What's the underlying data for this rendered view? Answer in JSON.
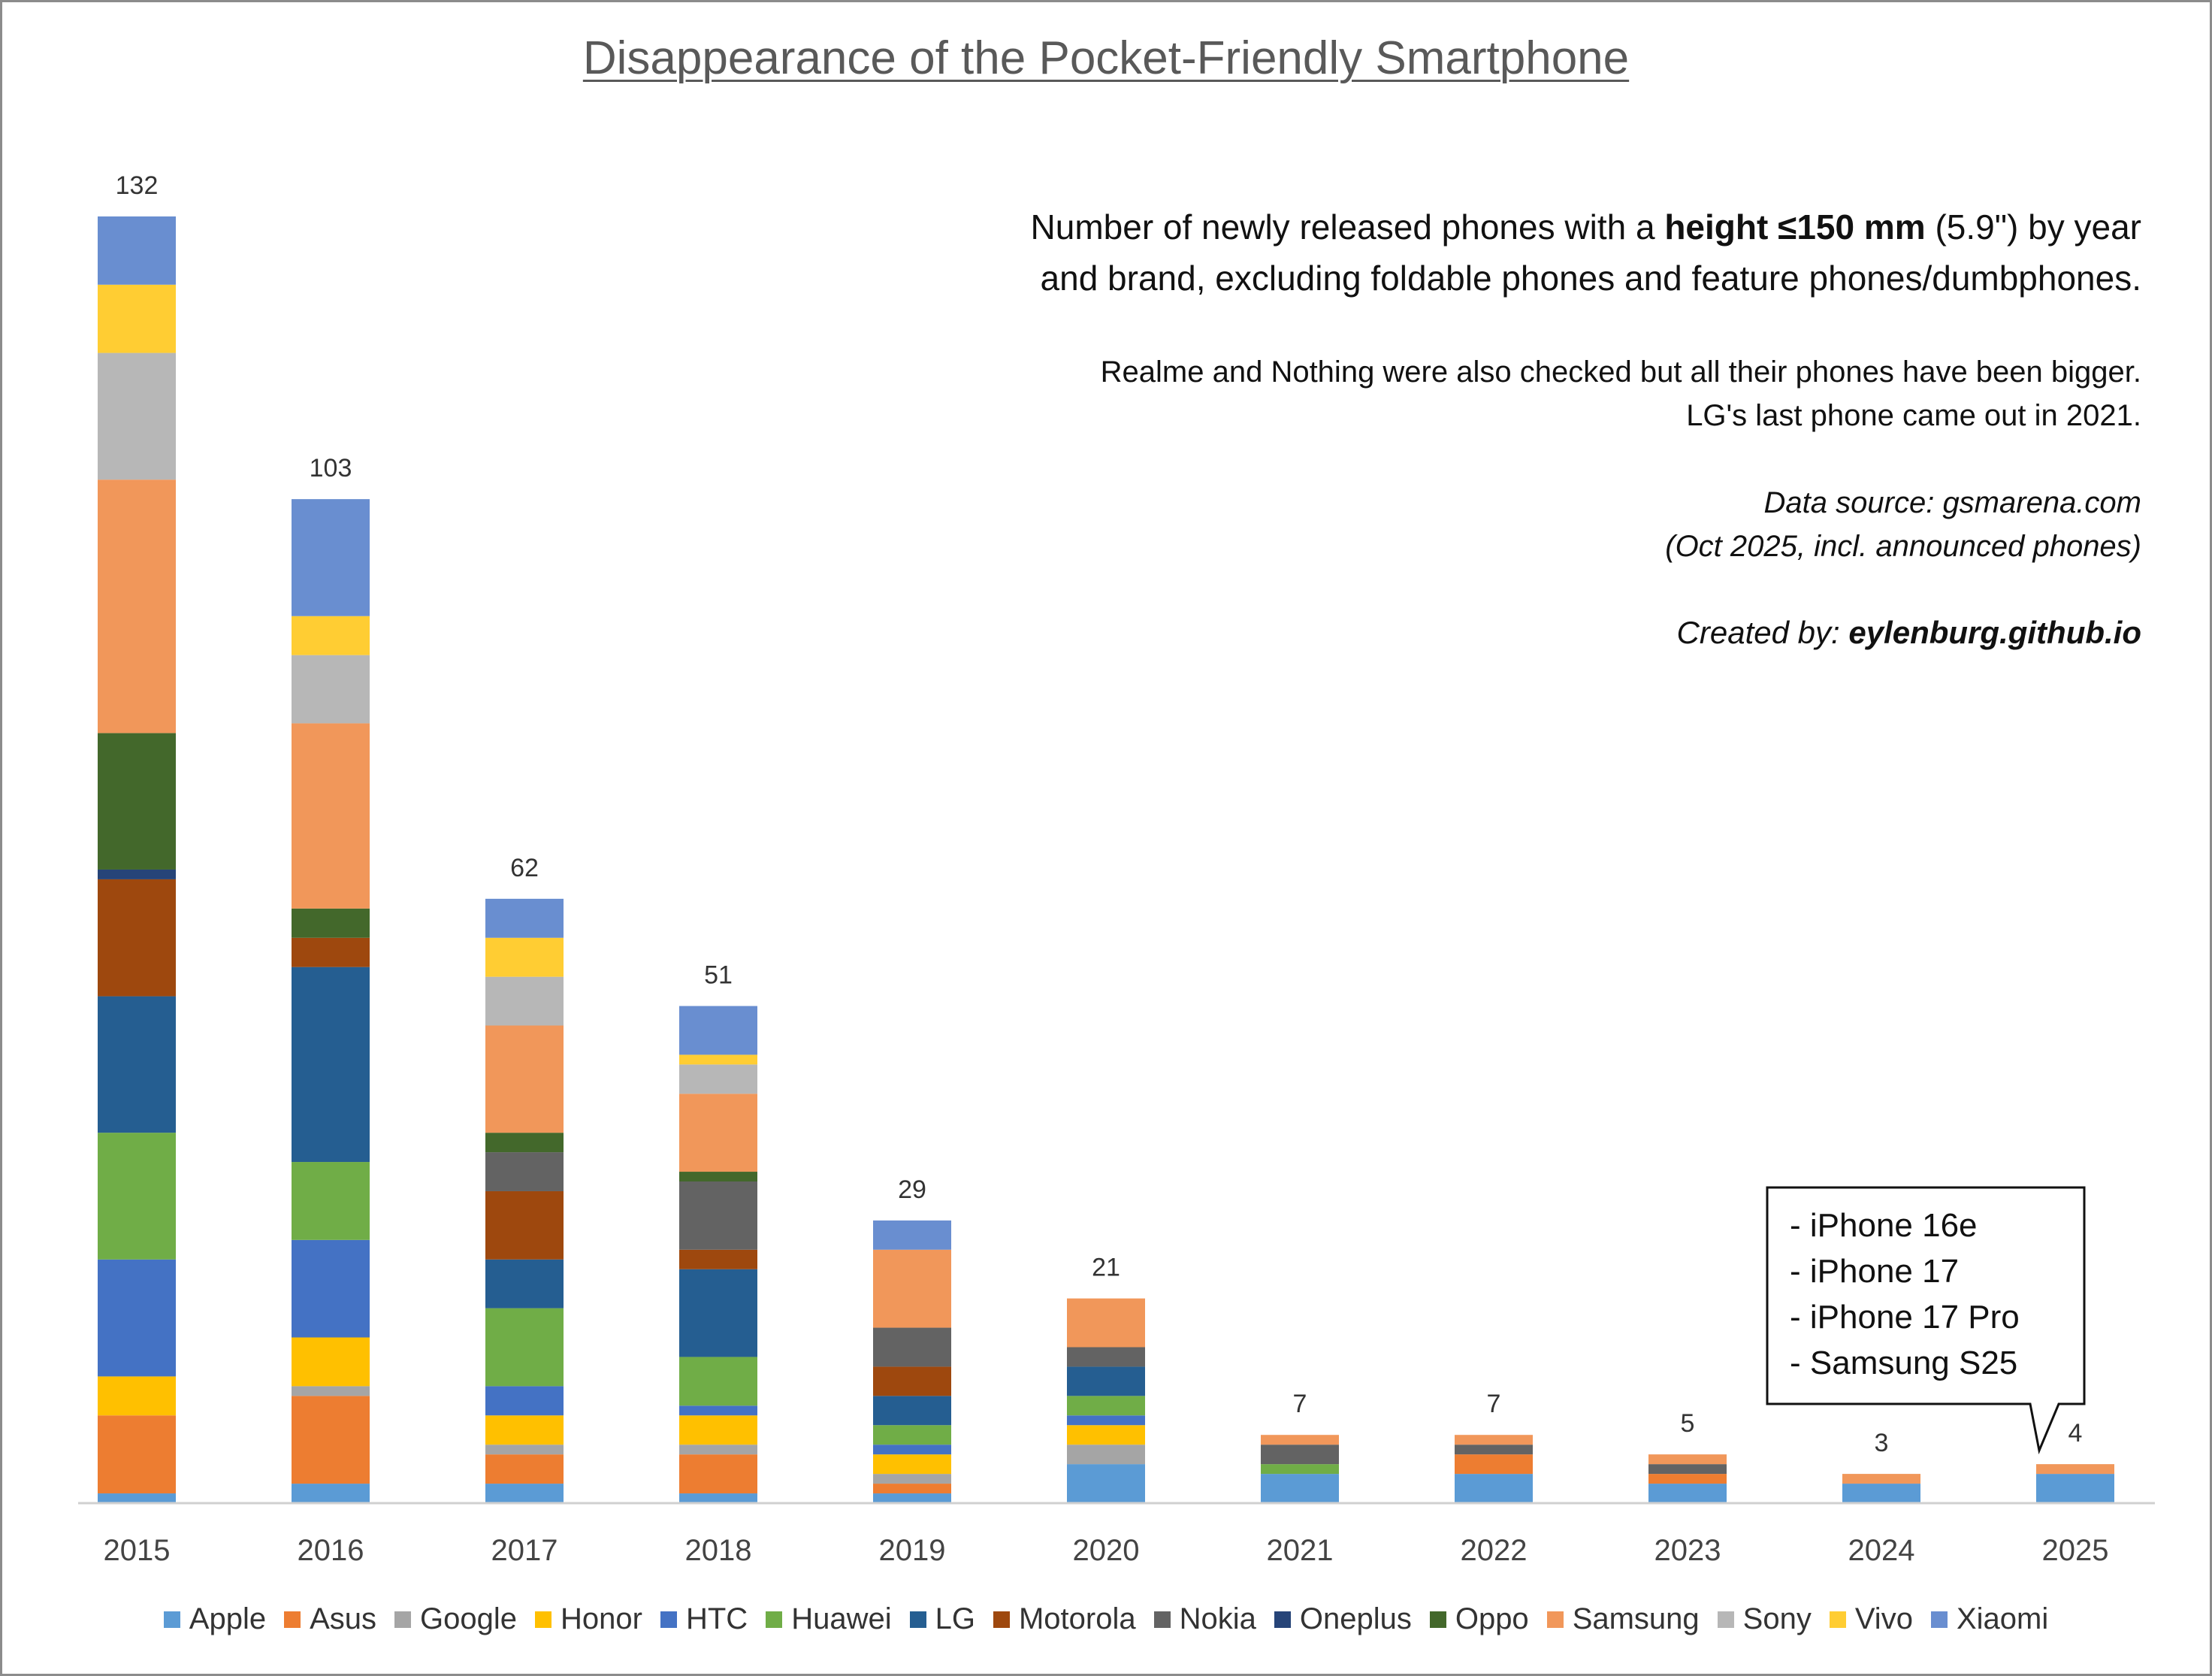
{
  "title": "Disappearance of the Pocket-Friendly Smartphone",
  "description": {
    "line1_pre": "Number of newly released phones with a ",
    "line1_bold": "height ≤150 mm",
    "line1_post": " (5.9\") by year",
    "line2": "and brand, excluding foldable phones and feature phones/dumbphones."
  },
  "notes": [
    "Realme and Nothing were also checked but all their phones have been bigger.",
    "LG's last phone came out in 2021."
  ],
  "source": [
    "Data source: gsmarena.com",
    "(Oct 2025, incl. announced phones)"
  ],
  "credit": {
    "prefix": "Created by: ",
    "name": "eylenburg.github.io"
  },
  "callout": {
    "items": [
      "- iPhone 16e",
      "- iPhone 17",
      "- iPhone 17 Pro",
      "- Samsung S25"
    ],
    "points_to": "2025"
  },
  "colors": {
    "Apple": "#5b9bd5",
    "Asus": "#ed7d31",
    "Google": "#a5a5a5",
    "Honor": "#ffc000",
    "HTC": "#4472c4",
    "Huawei": "#70ad47",
    "LG": "#255e91",
    "Motorola": "#9e480e",
    "Nokia": "#636363",
    "Oneplus": "#264478",
    "Oppo": "#43682b",
    "Samsung": "#f1975a",
    "Sony": "#b7b7b7",
    "Vivo": "#ffcd33",
    "Xiaomi": "#698ed0"
  },
  "chart_data": {
    "type": "bar",
    "stacked": true,
    "categories": [
      "2015",
      "2016",
      "2017",
      "2018",
      "2019",
      "2020",
      "2021",
      "2022",
      "2023",
      "2024",
      "2025"
    ],
    "totals": [
      132,
      103,
      62,
      51,
      29,
      21,
      7,
      7,
      5,
      3,
      4
    ],
    "series": [
      {
        "name": "Apple",
        "values": [
          1,
          2,
          2,
          1,
          1,
          4,
          3,
          3,
          2,
          2,
          3
        ]
      },
      {
        "name": "Asus",
        "values": [
          8,
          9,
          3,
          4,
          1,
          0,
          0,
          2,
          1,
          0,
          0
        ]
      },
      {
        "name": "Google",
        "values": [
          0,
          1,
          1,
          1,
          1,
          2,
          0,
          0,
          0,
          0,
          0
        ]
      },
      {
        "name": "Honor",
        "values": [
          4,
          5,
          3,
          3,
          2,
          2,
          0,
          0,
          0,
          0,
          0
        ]
      },
      {
        "name": "HTC",
        "values": [
          12,
          10,
          3,
          1,
          1,
          1,
          0,
          0,
          0,
          0,
          0
        ]
      },
      {
        "name": "Huawei",
        "values": [
          13,
          8,
          8,
          5,
          2,
          2,
          1,
          0,
          0,
          0,
          0
        ]
      },
      {
        "name": "LG",
        "values": [
          14,
          20,
          5,
          9,
          3,
          3,
          0,
          0,
          0,
          0,
          0
        ]
      },
      {
        "name": "Motorola",
        "values": [
          12,
          3,
          7,
          2,
          3,
          0,
          0,
          0,
          0,
          0,
          0
        ]
      },
      {
        "name": "Nokia",
        "values": [
          0,
          0,
          4,
          7,
          4,
          2,
          2,
          1,
          1,
          0,
          0
        ]
      },
      {
        "name": "Oneplus",
        "values": [
          1,
          0,
          0,
          0,
          0,
          0,
          0,
          0,
          0,
          0,
          0
        ]
      },
      {
        "name": "Oppo",
        "values": [
          14,
          3,
          2,
          1,
          0,
          0,
          0,
          0,
          0,
          0,
          0
        ]
      },
      {
        "name": "Samsung",
        "values": [
          26,
          19,
          11,
          8,
          8,
          5,
          1,
          1,
          1,
          1,
          1
        ]
      },
      {
        "name": "Sony",
        "values": [
          13,
          7,
          5,
          3,
          0,
          0,
          0,
          0,
          0,
          0,
          0
        ]
      },
      {
        "name": "Vivo",
        "values": [
          7,
          4,
          4,
          1,
          0,
          0,
          0,
          0,
          0,
          0,
          0
        ]
      },
      {
        "name": "Xiaomi",
        "values": [
          7,
          12,
          4,
          5,
          3,
          0,
          0,
          0,
          0,
          0,
          0
        ]
      }
    ],
    "ylim": [
      0,
      132
    ],
    "grid": false,
    "legend_position": "bottom"
  }
}
